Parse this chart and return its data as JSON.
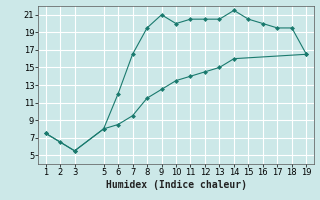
{
  "title": "",
  "xlabel": "Humidex (Indice chaleur)",
  "ylabel": "",
  "background_color": "#cce8e8",
  "grid_color": "#ffffff",
  "line_color": "#1a7a6e",
  "marker_color": "#1a7a6e",
  "xlim": [
    0.5,
    19.5
  ],
  "ylim": [
    4,
    22
  ],
  "xticks": [
    1,
    2,
    3,
    5,
    6,
    7,
    8,
    9,
    10,
    11,
    12,
    13,
    14,
    15,
    16,
    17,
    18,
    19
  ],
  "yticks": [
    5,
    7,
    9,
    11,
    13,
    15,
    17,
    19,
    21
  ],
  "curve1_x": [
    1,
    2,
    3,
    5,
    6,
    7,
    8,
    9,
    10,
    11,
    12,
    13,
    14,
    15,
    16,
    17,
    18,
    19
  ],
  "curve1_y": [
    7.5,
    6.5,
    5.5,
    8.0,
    12.0,
    16.5,
    19.5,
    21.0,
    20.0,
    20.5,
    20.5,
    20.5,
    21.5,
    20.5,
    20.0,
    19.5,
    19.5,
    16.5
  ],
  "curve2_x": [
    1,
    3,
    5,
    6,
    7,
    8,
    9,
    10,
    11,
    12,
    13,
    14,
    19
  ],
  "curve2_y": [
    7.5,
    5.5,
    8.0,
    8.5,
    9.5,
    11.5,
    12.5,
    13.5,
    14.0,
    14.5,
    15.0,
    16.0,
    16.5
  ],
  "xlabel_fontsize": 7,
  "tick_fontsize": 6
}
